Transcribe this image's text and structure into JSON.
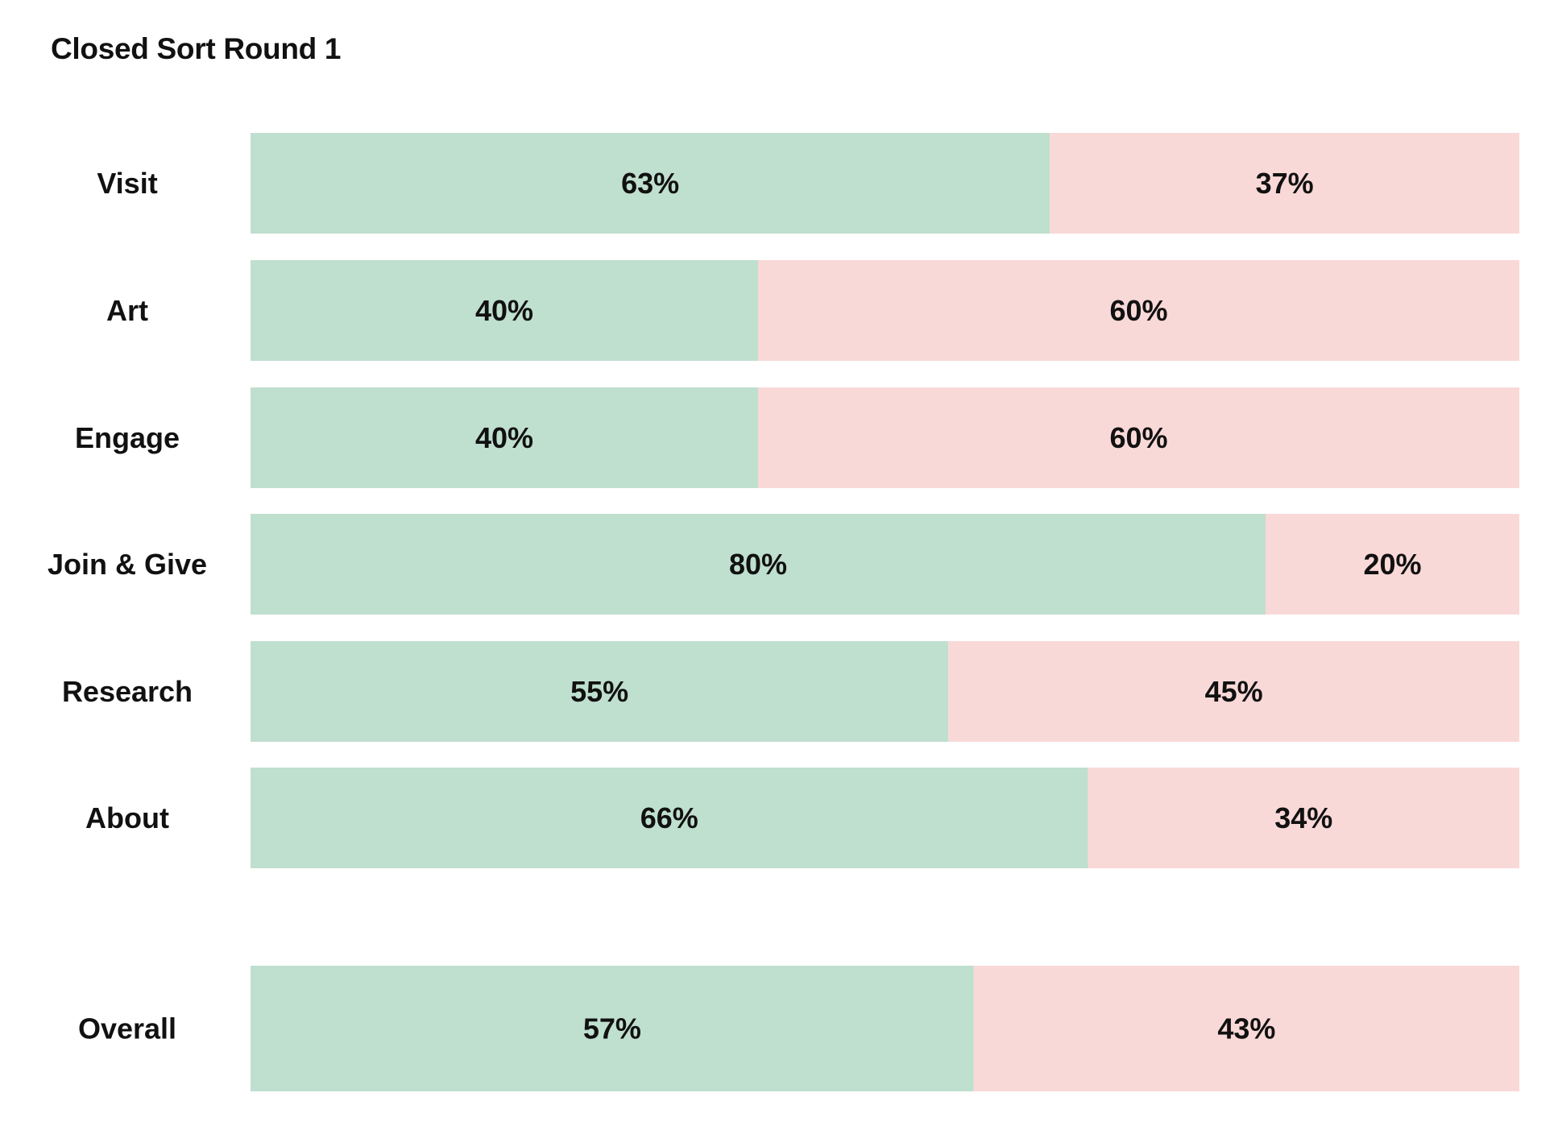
{
  "chart_data": {
    "type": "bar",
    "orientation": "horizontal",
    "stacked": true,
    "title": "Closed Sort Round 1",
    "categories": [
      "Visit",
      "Art",
      "Engage",
      "Join & Give",
      "Research",
      "About",
      "Overall"
    ],
    "series": [
      {
        "values": [
          63,
          40,
          40,
          80,
          55,
          66,
          57
        ],
        "labels": [
          "63%",
          "40%",
          "40%",
          "80%",
          "55%",
          "66%",
          "57%"
        ],
        "color": "#bfdfcf"
      },
      {
        "values": [
          37,
          60,
          60,
          20,
          45,
          34,
          43
        ],
        "labels": [
          "37%",
          "60%",
          "60%",
          "20%",
          "45%",
          "34%",
          "43%"
        ],
        "color": "#f9d9d8"
      }
    ],
    "xlim": [
      0,
      100
    ],
    "grid": false,
    "legend": "none"
  }
}
